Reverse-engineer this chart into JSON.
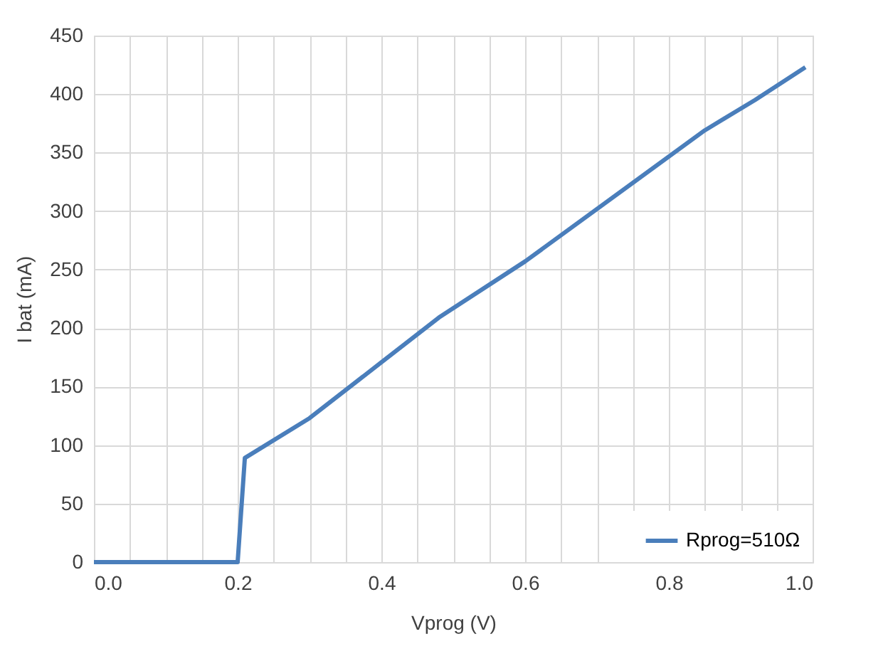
{
  "chart_data": {
    "type": "line",
    "xlabel": "Vprog (V)",
    "ylabel": "I bat (mA)",
    "xlim": [
      0,
      1
    ],
    "ylim": [
      0,
      450
    ],
    "xticks": [
      {
        "value": 0,
        "label": "0.0"
      },
      {
        "value": 0.05,
        "label": null
      },
      {
        "value": 0.1,
        "label": null
      },
      {
        "value": 0.15,
        "label": null
      },
      {
        "value": 0.2,
        "label": "0.2"
      },
      {
        "value": 0.25,
        "label": null
      },
      {
        "value": 0.3,
        "label": null
      },
      {
        "value": 0.35,
        "label": null
      },
      {
        "value": 0.4,
        "label": "0.4"
      },
      {
        "value": 0.45,
        "label": null
      },
      {
        "value": 0.5,
        "label": null
      },
      {
        "value": 0.55,
        "label": null
      },
      {
        "value": 0.6,
        "label": "0.6"
      },
      {
        "value": 0.65,
        "label": null
      },
      {
        "value": 0.7,
        "label": null
      },
      {
        "value": 0.75,
        "label": null
      },
      {
        "value": 0.8,
        "label": "0.8"
      },
      {
        "value": 0.85,
        "label": null
      },
      {
        "value": 0.9,
        "label": null
      },
      {
        "value": 0.95,
        "label": null
      },
      {
        "value": 1,
        "label": "1.0"
      }
    ],
    "yticks": [
      0,
      50,
      100,
      150,
      200,
      250,
      300,
      350,
      400,
      450
    ],
    "grid": true,
    "legend": "bottom right",
    "marker": "none",
    "line_style": "solid",
    "series": [
      {
        "name": "Rprog=510Ω",
        "color": "#4a7ebb",
        "x": [
          0,
          0.2,
          0.21,
          0.3,
          0.48,
          0.6,
          0.85,
          0.92,
          0.99
        ],
        "values": [
          0,
          0,
          89,
          123,
          209,
          257,
          369,
          395,
          423
        ]
      }
    ]
  }
}
